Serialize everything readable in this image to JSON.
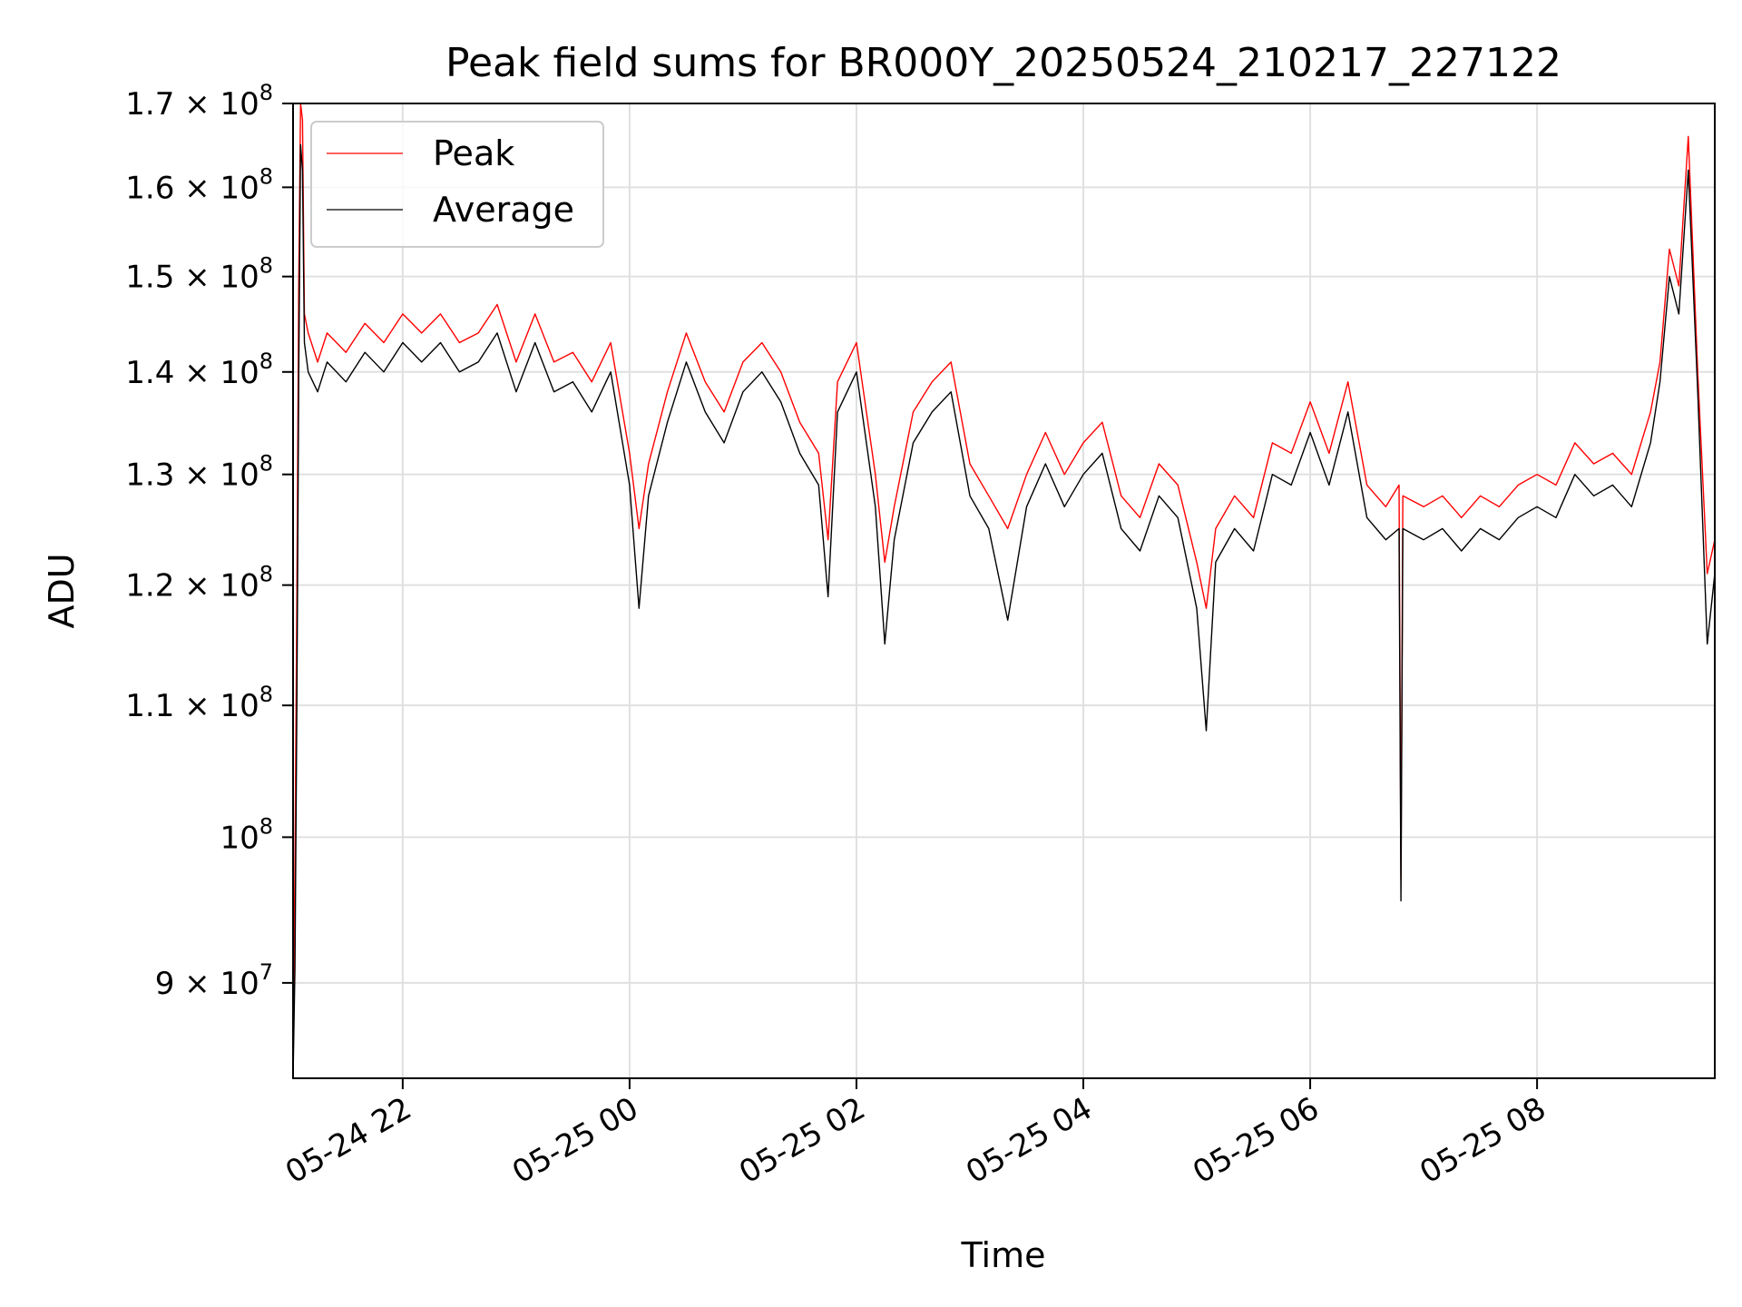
{
  "chart_data": {
    "type": "line",
    "title": "Peak field sums for BR000Y_20250524_210217_227122",
    "xlabel": "Time",
    "ylabel": "ADU",
    "y_scale": "log",
    "grid": true,
    "legend_placement": "top-left",
    "xlim": [
      "2025-05-24 21:02",
      "2025-05-25 09:34"
    ],
    "ylim": [
      84000000,
      170000000
    ],
    "x_ticks": [
      {
        "value": "2025-05-24 22:00",
        "label": "05-24 22"
      },
      {
        "value": "2025-05-25 00:00",
        "label": "05-25 00"
      },
      {
        "value": "2025-05-25 02:00",
        "label": "05-25 02"
      },
      {
        "value": "2025-05-25 04:00",
        "label": "05-25 04"
      },
      {
        "value": "2025-05-25 06:00",
        "label": "05-25 06"
      },
      {
        "value": "2025-05-25 08:00",
        "label": "05-25 08"
      }
    ],
    "y_ticks": [
      {
        "value": 90000000,
        "mantissa": "9",
        "exp": "7"
      },
      {
        "value": 100000000,
        "mantissa": "",
        "exp": "8"
      },
      {
        "value": 110000000,
        "mantissa": "1.1",
        "exp": "8"
      },
      {
        "value": 120000000,
        "mantissa": "1.2",
        "exp": "8"
      },
      {
        "value": 130000000,
        "mantissa": "1.3",
        "exp": "8"
      },
      {
        "value": 140000000,
        "mantissa": "1.4",
        "exp": "8"
      },
      {
        "value": 150000000,
        "mantissa": "1.5",
        "exp": "8"
      },
      {
        "value": 160000000,
        "mantissa": "1.6",
        "exp": "8"
      },
      {
        "value": 170000000,
        "mantissa": "1.7",
        "exp": "8"
      }
    ],
    "series": [
      {
        "name": "Peak",
        "color": "#ff0000",
        "points": [
          [
            "2025-05-24 21:02",
            85000000
          ],
          [
            "2025-05-24 21:03",
            98000000
          ],
          [
            "2025-05-24 21:04",
            119000000
          ],
          [
            "2025-05-24 21:05",
            150000000
          ],
          [
            "2025-05-24 21:06",
            170000000
          ],
          [
            "2025-05-24 21:07",
            168000000
          ],
          [
            "2025-05-24 21:08",
            146000000
          ],
          [
            "2025-05-24 21:10",
            144000000
          ],
          [
            "2025-05-24 21:15",
            141000000
          ],
          [
            "2025-05-24 21:20",
            144000000
          ],
          [
            "2025-05-24 21:30",
            142000000
          ],
          [
            "2025-05-24 21:40",
            145000000
          ],
          [
            "2025-05-24 21:50",
            143000000
          ],
          [
            "2025-05-24 22:00",
            146000000
          ],
          [
            "2025-05-24 22:10",
            144000000
          ],
          [
            "2025-05-24 22:20",
            146000000
          ],
          [
            "2025-05-24 22:30",
            143000000
          ],
          [
            "2025-05-24 22:40",
            144000000
          ],
          [
            "2025-05-24 22:50",
            147000000
          ],
          [
            "2025-05-24 23:00",
            141000000
          ],
          [
            "2025-05-24 23:10",
            146000000
          ],
          [
            "2025-05-24 23:20",
            141000000
          ],
          [
            "2025-05-24 23:30",
            142000000
          ],
          [
            "2025-05-24 23:40",
            139000000
          ],
          [
            "2025-05-24 23:50",
            143000000
          ],
          [
            "2025-05-25 00:00",
            132000000
          ],
          [
            "2025-05-25 00:05",
            125000000
          ],
          [
            "2025-05-25 00:10",
            131000000
          ],
          [
            "2025-05-25 00:20",
            138000000
          ],
          [
            "2025-05-25 00:30",
            144000000
          ],
          [
            "2025-05-25 00:40",
            139000000
          ],
          [
            "2025-05-25 00:50",
            136000000
          ],
          [
            "2025-05-25 01:00",
            141000000
          ],
          [
            "2025-05-25 01:10",
            143000000
          ],
          [
            "2025-05-25 01:20",
            140000000
          ],
          [
            "2025-05-25 01:30",
            135000000
          ],
          [
            "2025-05-25 01:40",
            132000000
          ],
          [
            "2025-05-25 01:45",
            124000000
          ],
          [
            "2025-05-25 01:50",
            139000000
          ],
          [
            "2025-05-25 02:00",
            143000000
          ],
          [
            "2025-05-25 02:10",
            130000000
          ],
          [
            "2025-05-25 02:15",
            122000000
          ],
          [
            "2025-05-25 02:20",
            127000000
          ],
          [
            "2025-05-25 02:30",
            136000000
          ],
          [
            "2025-05-25 02:40",
            139000000
          ],
          [
            "2025-05-25 02:50",
            141000000
          ],
          [
            "2025-05-25 03:00",
            131000000
          ],
          [
            "2025-05-25 03:10",
            128000000
          ],
          [
            "2025-05-25 03:20",
            125000000
          ],
          [
            "2025-05-25 03:30",
            130000000
          ],
          [
            "2025-05-25 03:40",
            134000000
          ],
          [
            "2025-05-25 03:50",
            130000000
          ],
          [
            "2025-05-25 04:00",
            133000000
          ],
          [
            "2025-05-25 04:10",
            135000000
          ],
          [
            "2025-05-25 04:20",
            128000000
          ],
          [
            "2025-05-25 04:30",
            126000000
          ],
          [
            "2025-05-25 04:40",
            131000000
          ],
          [
            "2025-05-25 04:50",
            129000000
          ],
          [
            "2025-05-25 05:00",
            122000000
          ],
          [
            "2025-05-25 05:05",
            118000000
          ],
          [
            "2025-05-25 05:10",
            125000000
          ],
          [
            "2025-05-25 05:20",
            128000000
          ],
          [
            "2025-05-25 05:30",
            126000000
          ],
          [
            "2025-05-25 05:40",
            133000000
          ],
          [
            "2025-05-25 05:50",
            132000000
          ],
          [
            "2025-05-25 06:00",
            137000000
          ],
          [
            "2025-05-25 06:10",
            132000000
          ],
          [
            "2025-05-25 06:20",
            139000000
          ],
          [
            "2025-05-25 06:30",
            129000000
          ],
          [
            "2025-05-25 06:40",
            127000000
          ],
          [
            "2025-05-25 06:47",
            129000000
          ],
          [
            "2025-05-25 06:48",
            97000000
          ],
          [
            "2025-05-25 06:49",
            128000000
          ],
          [
            "2025-05-25 07:00",
            127000000
          ],
          [
            "2025-05-25 07:10",
            128000000
          ],
          [
            "2025-05-25 07:20",
            126000000
          ],
          [
            "2025-05-25 07:30",
            128000000
          ],
          [
            "2025-05-25 07:40",
            127000000
          ],
          [
            "2025-05-25 07:50",
            129000000
          ],
          [
            "2025-05-25 08:00",
            130000000
          ],
          [
            "2025-05-25 08:10",
            129000000
          ],
          [
            "2025-05-25 08:20",
            133000000
          ],
          [
            "2025-05-25 08:30",
            131000000
          ],
          [
            "2025-05-25 08:40",
            132000000
          ],
          [
            "2025-05-25 08:50",
            130000000
          ],
          [
            "2025-05-25 09:00",
            136000000
          ],
          [
            "2025-05-25 09:05",
            141000000
          ],
          [
            "2025-05-25 09:10",
            153000000
          ],
          [
            "2025-05-25 09:15",
            149000000
          ],
          [
            "2025-05-25 09:20",
            166000000
          ],
          [
            "2025-05-25 09:25",
            140000000
          ],
          [
            "2025-05-25 09:30",
            121000000
          ],
          [
            "2025-05-25 09:34",
            124000000
          ]
        ]
      },
      {
        "name": "Average",
        "color": "#000000",
        "points": [
          [
            "2025-05-24 21:02",
            84000000
          ],
          [
            "2025-05-24 21:03",
            91000000
          ],
          [
            "2025-05-24 21:04",
            110000000
          ],
          [
            "2025-05-24 21:05",
            140000000
          ],
          [
            "2025-05-24 21:06",
            165000000
          ],
          [
            "2025-05-24 21:07",
            162000000
          ],
          [
            "2025-05-24 21:08",
            143000000
          ],
          [
            "2025-05-24 21:10",
            140000000
          ],
          [
            "2025-05-24 21:15",
            138000000
          ],
          [
            "2025-05-24 21:20",
            141000000
          ],
          [
            "2025-05-24 21:30",
            139000000
          ],
          [
            "2025-05-24 21:40",
            142000000
          ],
          [
            "2025-05-24 21:50",
            140000000
          ],
          [
            "2025-05-24 22:00",
            143000000
          ],
          [
            "2025-05-24 22:10",
            141000000
          ],
          [
            "2025-05-24 22:20",
            143000000
          ],
          [
            "2025-05-24 22:30",
            140000000
          ],
          [
            "2025-05-24 22:40",
            141000000
          ],
          [
            "2025-05-24 22:50",
            144000000
          ],
          [
            "2025-05-24 23:00",
            138000000
          ],
          [
            "2025-05-24 23:10",
            143000000
          ],
          [
            "2025-05-24 23:20",
            138000000
          ],
          [
            "2025-05-24 23:30",
            139000000
          ],
          [
            "2025-05-24 23:40",
            136000000
          ],
          [
            "2025-05-24 23:50",
            140000000
          ],
          [
            "2025-05-25 00:00",
            129000000
          ],
          [
            "2025-05-25 00:05",
            118000000
          ],
          [
            "2025-05-25 00:10",
            128000000
          ],
          [
            "2025-05-25 00:20",
            135000000
          ],
          [
            "2025-05-25 00:30",
            141000000
          ],
          [
            "2025-05-25 00:40",
            136000000
          ],
          [
            "2025-05-25 00:50",
            133000000
          ],
          [
            "2025-05-25 01:00",
            138000000
          ],
          [
            "2025-05-25 01:10",
            140000000
          ],
          [
            "2025-05-25 01:20",
            137000000
          ],
          [
            "2025-05-25 01:30",
            132000000
          ],
          [
            "2025-05-25 01:40",
            129000000
          ],
          [
            "2025-05-25 01:45",
            119000000
          ],
          [
            "2025-05-25 01:50",
            136000000
          ],
          [
            "2025-05-25 02:00",
            140000000
          ],
          [
            "2025-05-25 02:10",
            127000000
          ],
          [
            "2025-05-25 02:15",
            115000000
          ],
          [
            "2025-05-25 02:20",
            124000000
          ],
          [
            "2025-05-25 02:30",
            133000000
          ],
          [
            "2025-05-25 02:40",
            136000000
          ],
          [
            "2025-05-25 02:50",
            138000000
          ],
          [
            "2025-05-25 03:00",
            128000000
          ],
          [
            "2025-05-25 03:10",
            125000000
          ],
          [
            "2025-05-25 03:20",
            117000000
          ],
          [
            "2025-05-25 03:30",
            127000000
          ],
          [
            "2025-05-25 03:40",
            131000000
          ],
          [
            "2025-05-25 03:50",
            127000000
          ],
          [
            "2025-05-25 04:00",
            130000000
          ],
          [
            "2025-05-25 04:10",
            132000000
          ],
          [
            "2025-05-25 04:20",
            125000000
          ],
          [
            "2025-05-25 04:30",
            123000000
          ],
          [
            "2025-05-25 04:40",
            128000000
          ],
          [
            "2025-05-25 04:50",
            126000000
          ],
          [
            "2025-05-25 05:00",
            118000000
          ],
          [
            "2025-05-25 05:05",
            108000000
          ],
          [
            "2025-05-25 05:10",
            122000000
          ],
          [
            "2025-05-25 05:20",
            125000000
          ],
          [
            "2025-05-25 05:30",
            123000000
          ],
          [
            "2025-05-25 05:40",
            130000000
          ],
          [
            "2025-05-25 05:50",
            129000000
          ],
          [
            "2025-05-25 06:00",
            134000000
          ],
          [
            "2025-05-25 06:10",
            129000000
          ],
          [
            "2025-05-25 06:20",
            136000000
          ],
          [
            "2025-05-25 06:30",
            126000000
          ],
          [
            "2025-05-25 06:40",
            124000000
          ],
          [
            "2025-05-25 06:47",
            125000000
          ],
          [
            "2025-05-25 06:48",
            95500000
          ],
          [
            "2025-05-25 06:49",
            125000000
          ],
          [
            "2025-05-25 07:00",
            124000000
          ],
          [
            "2025-05-25 07:10",
            125000000
          ],
          [
            "2025-05-25 07:20",
            123000000
          ],
          [
            "2025-05-25 07:30",
            125000000
          ],
          [
            "2025-05-25 07:40",
            124000000
          ],
          [
            "2025-05-25 07:50",
            126000000
          ],
          [
            "2025-05-25 08:00",
            127000000
          ],
          [
            "2025-05-25 08:10",
            126000000
          ],
          [
            "2025-05-25 08:20",
            130000000
          ],
          [
            "2025-05-25 08:30",
            128000000
          ],
          [
            "2025-05-25 08:40",
            129000000
          ],
          [
            "2025-05-25 08:50",
            127000000
          ],
          [
            "2025-05-25 09:00",
            133000000
          ],
          [
            "2025-05-25 09:05",
            139000000
          ],
          [
            "2025-05-25 09:10",
            150000000
          ],
          [
            "2025-05-25 09:15",
            146000000
          ],
          [
            "2025-05-25 09:20",
            162000000
          ],
          [
            "2025-05-25 09:25",
            138000000
          ],
          [
            "2025-05-25 09:30",
            115000000
          ],
          [
            "2025-05-25 09:34",
            121000000
          ]
        ]
      }
    ]
  }
}
